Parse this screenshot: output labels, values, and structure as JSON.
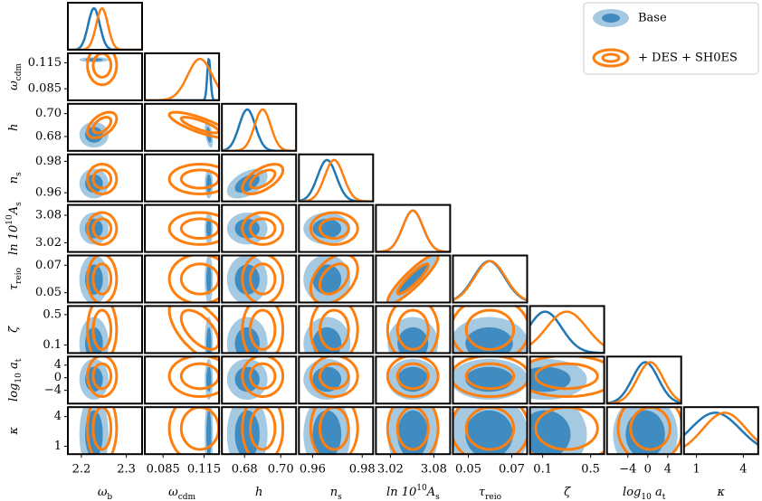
{
  "chart_data": {
    "type": "corner",
    "params": [
      {
        "label": [
          {
            "text": "ω"
          },
          {
            "text": "b",
            "style": "sub"
          }
        ],
        "lim": [
          2.17,
          2.335
        ],
        "ticks": [
          2.2,
          2.3
        ]
      },
      {
        "label": [
          {
            "text": "ω"
          },
          {
            "text": "cdm",
            "style": "sub"
          }
        ],
        "lim": [
          0.0717,
          0.126
        ],
        "ticks": [
          0.085,
          0.115
        ]
      },
      {
        "label": [
          {
            "text": "h"
          }
        ],
        "lim": [
          0.6675,
          0.7085
        ],
        "ticks": [
          0.68,
          {
            "value": 0.7,
            "label": "0.70"
          }
        ]
      },
      {
        "label": [
          {
            "text": "n"
          },
          {
            "text": "s",
            "style": "sub"
          }
        ],
        "lim": [
          0.9545,
          0.9844
        ],
        "ticks": [
          0.96,
          0.98
        ]
      },
      {
        "label": [
          {
            "text": "ln 10"
          },
          {
            "text": "10",
            "style": "sup"
          },
          {
            "text": "A"
          },
          {
            "text": "s",
            "style": "sub"
          }
        ],
        "lim": [
          3.0,
          3.1025
        ],
        "ticks": [
          3.02,
          3.08
        ]
      },
      {
        "label": [
          {
            "text": "τ"
          },
          {
            "text": "reio",
            "style": "sub"
          }
        ],
        "lim": [
          0.0429,
          0.0771
        ],
        "ticks": [
          0.05,
          0.07
        ]
      },
      {
        "label": [
          {
            "text": "ζ"
          }
        ],
        "lim": [
          -0.006,
          0.613
        ],
        "ticks": [
          0.1,
          0.5
        ]
      },
      {
        "label": [
          {
            "text": "log"
          },
          {
            "text": "10",
            "style": "sub"
          },
          {
            "text": " a"
          },
          {
            "text": "t",
            "style": "sub"
          }
        ],
        "lim": [
          -8.2,
          6.7
        ],
        "ticks": [
          {
            "value": -4,
            "label": "−4"
          },
          0,
          4
        ]
      },
      {
        "label": [
          {
            "text": "κ"
          }
        ],
        "lim": [
          0.2,
          4.95
        ],
        "ticks": [
          1,
          4
        ]
      }
    ],
    "series": [
      {
        "name": "Base",
        "color": "#1f77b4",
        "filled": true,
        "mean": [
          2.228,
          0.1185,
          0.6815,
          0.9658,
          3.051,
          0.0596,
          0.12,
          -0.5,
          2.2
        ],
        "sigma": [
          0.013,
          0.0012,
          0.0045,
          0.0038,
          0.014,
          0.0072,
          0.14,
          2.6,
          1.6
        ],
        "correlations": [
          {
            "params": [
              1,
              2
            ],
            "r": -0.5
          },
          {
            "params": [
              2,
              3
            ],
            "r": 0.5
          },
          {
            "params": [
              4,
              5
            ],
            "r": 0.9
          }
        ]
      },
      {
        "name": "+ DES + SH0ES",
        "color": "#ff7f0e",
        "filled": false,
        "mean": [
          2.246,
          0.112,
          0.69,
          0.9687,
          3.051,
          0.06,
          0.3,
          0.5,
          2.8
        ],
        "sigma": [
          0.013,
          0.009,
          0.0045,
          0.0038,
          0.014,
          0.0072,
          0.17,
          2.6,
          1.4
        ],
        "correlations": [
          {
            "params": [
              0,
              2
            ],
            "r": 0.5
          },
          {
            "params": [
              1,
              2
            ],
            "r": -0.8
          },
          {
            "params": [
              2,
              3
            ],
            "r": 0.6
          },
          {
            "params": [
              4,
              5
            ],
            "r": 0.9
          },
          {
            "params": [
              1,
              6
            ],
            "r": -0.6
          },
          {
            "params": [
              3,
              5
            ],
            "r": 0.4
          }
        ]
      }
    ],
    "legend": "upper right"
  }
}
